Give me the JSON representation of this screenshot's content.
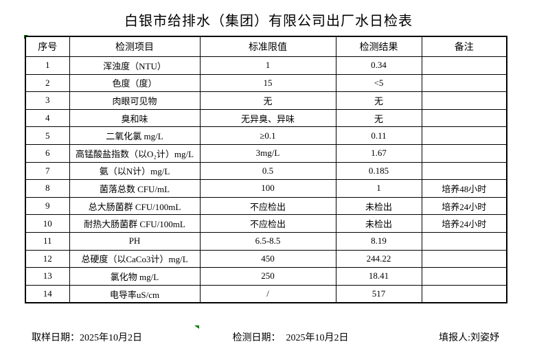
{
  "title": "白银市给排水（集团）有限公司出厂水日检表",
  "table": {
    "headers": [
      "序号",
      "检测项目",
      "标准限值",
      "检测结果",
      "备注"
    ],
    "rows": [
      [
        "1",
        "浑浊度（NTU）",
        "1",
        "0.34",
        ""
      ],
      [
        "2",
        "色度（度）",
        "15",
        "<5",
        ""
      ],
      [
        "3",
        "肉眼可见物",
        "无",
        "无",
        ""
      ],
      [
        "4",
        "臭和味",
        "无异臭、异味",
        "无",
        ""
      ],
      [
        "5",
        "二氧化氯 mg/L",
        "≥0.1",
        "0.11",
        ""
      ],
      [
        "6",
        "高锰酸盐指数（以O₂计）mg/L",
        "3mg/L",
        "1.67",
        ""
      ],
      [
        "7",
        "氨（以N计）mg/L",
        "0.5",
        "0.185",
        ""
      ],
      [
        "8",
        "菌落总数 CFU/mL",
        "100",
        "1",
        "培养48小时"
      ],
      [
        "9",
        "总大肠菌群 CFU/100mL",
        "不应检出",
        "未检出",
        "培养24小时"
      ],
      [
        "10",
        "耐热大肠菌群 CFU/100mL",
        "不应检出",
        "未检出",
        "培养24小时"
      ],
      [
        "11",
        "PH",
        "6.5-8.5",
        "8.19",
        ""
      ],
      [
        "12",
        "总硬度（以CaCo3计）mg/L",
        "450",
        "244.22",
        ""
      ],
      [
        "13",
        "氯化物 mg/L",
        "250",
        "18.41",
        ""
      ],
      [
        "14",
        "电导率uS/cm",
        "/",
        "517",
        ""
      ]
    ]
  },
  "footer": {
    "sample_date_label": "取样日期：",
    "sample_date": "2025年10月2日",
    "test_date_label": "检测日期：",
    "test_date": "2025年10月2日",
    "reporter_label": "填报人:",
    "reporter": "刘姿妤"
  },
  "colors": {
    "marker_green": "#008000",
    "border": "#000000",
    "background": "#ffffff"
  }
}
